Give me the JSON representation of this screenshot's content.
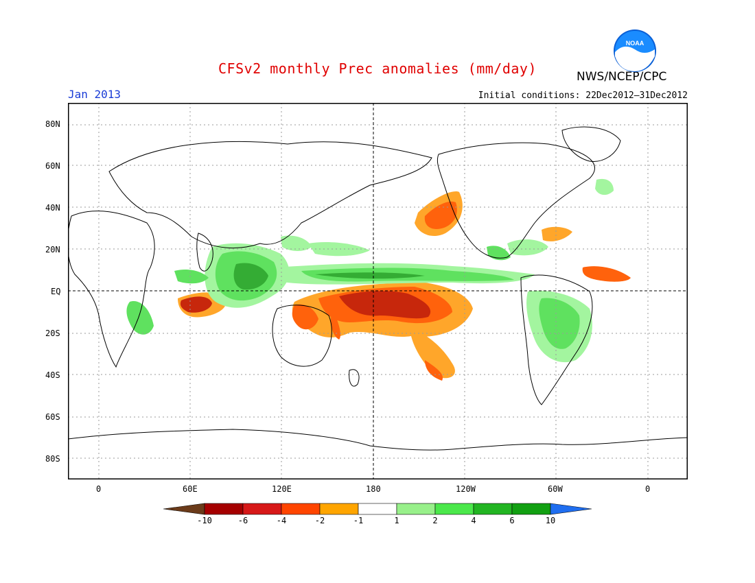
{
  "header": {
    "title": "CFSv2 monthly Prec anomalies (mm/day)",
    "agency": "NWS/NCEP/CPC",
    "month": "Jan 2013",
    "initial_conditions": "Initial conditions: 22Dec2012–31Dec2012",
    "logo_icon": "noaa-logo-icon"
  },
  "axes": {
    "lat_labels": [
      "80N",
      "60N",
      "40N",
      "20N",
      "EQ",
      "20S",
      "40S",
      "60S",
      "80S"
    ],
    "lon_labels": [
      "0",
      "60E",
      "120E",
      "180",
      "120W",
      "60W",
      "0"
    ]
  },
  "colorbar": {
    "labels": [
      "-10",
      "-6",
      "-4",
      "-2",
      "-1",
      "1",
      "2",
      "4",
      "6",
      "10"
    ],
    "colors": [
      "#6b3b1a",
      "#a50000",
      "#d71919",
      "#ff4500",
      "#ffa500",
      "#ffffff",
      "#98f08a",
      "#4be84b",
      "#22b522",
      "#12a012",
      "#1f6ef0"
    ]
  },
  "colors": {
    "dry_strong": "#c51c00",
    "dry_dark": "#a00000",
    "dry_mid": "#ff5a00",
    "dry_light": "#ffa21f",
    "wet_light": "#9ff59a",
    "wet_mid": "#57e057",
    "wet_dark": "#2aa82a"
  }
}
